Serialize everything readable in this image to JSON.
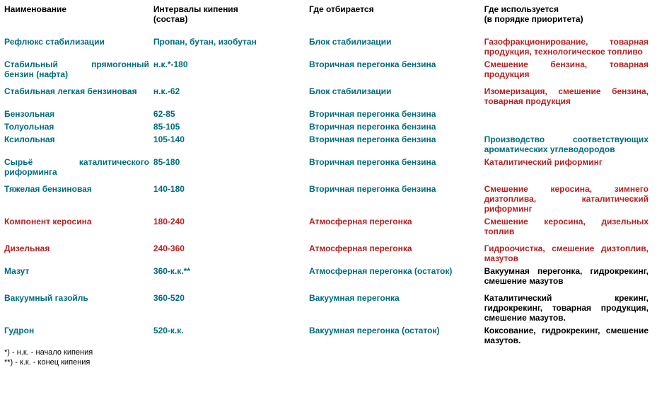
{
  "headers": {
    "c1": "Наименование",
    "c2": "Интервалы кипения\n(состав)",
    "c3": "Где отбирается",
    "c4": "Где используется\n(в порядке приоритета)"
  },
  "rows": [
    {
      "name": "Рефлюкс стабилизации",
      "range": "Пропан, бутан, изобутан",
      "where": "Блок стабилизации",
      "use": "Газофракционирование, товарная продукция, технологическое топливо",
      "useClass": "use-red",
      "sp": true
    },
    {
      "name": "Стабильный прямогонный бензин (нафта)",
      "range": "н.к.*-180",
      "where": "Вторичная перегонка бензина",
      "use": "Смешение бензина, товарная продукция",
      "useClass": "use-red"
    },
    {
      "name": "Стабильная легкая бензиновая",
      "range": "н.к.-62",
      "where": "Блок стабилизации",
      "use": "Изомеризация, смешение бензина, товарная продукция",
      "useClass": "use-red",
      "sp": true
    },
    {
      "name": "Бензольная",
      "range": "62-85",
      "where": "Вторичная перегонка бензина",
      "use": "",
      "useClass": "use-blue"
    },
    {
      "name": "Толуольная",
      "range": "85-105",
      "where": "Вторичная перегонка бензина",
      "use": "",
      "useClass": "use-blue"
    },
    {
      "name": "Ксилольная",
      "range": "105-140",
      "where": "Вторичная перегонка бензина",
      "use": "Производство соответствующих ароматических углеводородов",
      "useClass": "use-blue"
    },
    {
      "name": "Сырьё каталитического риформинга",
      "range": "85-180",
      "where": "Вторичная перегонка бензина",
      "use": "Каталитический риформинг",
      "useClass": "use-red"
    },
    {
      "name": "Тяжелая бензиновая",
      "range": "140-180",
      "where": "Вторичная перегонка бензина",
      "use": "Смешение керосина, зимнего дизтоплива, каталитический риформинг",
      "useClass": "use-red",
      "sp": true
    },
    {
      "name": "Компонент керосина",
      "range": "180-240",
      "where": "Атмосферная перегонка",
      "use": "Смешение керосина, дизельных топлив",
      "useClass": "use-red",
      "nameClass": "name-red",
      "rangeClass": "range-red",
      "whereClass": "where-red"
    },
    {
      "name": "Дизельная",
      "range": "240-360",
      "where": "Атмосферная перегонка",
      "use": "Гидроочистка, смешение дизтоплив, мазутов",
      "useClass": "use-red",
      "nameClass": "name-red",
      "rangeClass": "range-red",
      "whereClass": "where-red",
      "sp": true
    },
    {
      "name": "Мазут",
      "range": "360-к.к.**",
      "where": "Атмосферная перегонка (остаток)",
      "use": "Вакуумная перегонка, гидрокрекинг, смешение мазутов",
      "useClass": "use-black"
    },
    {
      "name": "Вакуумный газойль",
      "range": "360-520",
      "where": "Вакуумная перегонка",
      "use": "Каталитический крекинг, гидрокрекинг, товарная продукция, смешение мазутов.",
      "useClass": "use-black",
      "sp": true
    },
    {
      "name": "Гудрон",
      "range": "520-к.к.",
      "where": "Вакуумная перегонка (остаток)",
      "use": "Коксование, гидрокрекинг, смешение мазутов.",
      "useClass": "use-black"
    }
  ],
  "footnotes": {
    "f1": "*) - н.к. - начало кипения",
    "f2": "**) - к.к. - конец кипения"
  }
}
